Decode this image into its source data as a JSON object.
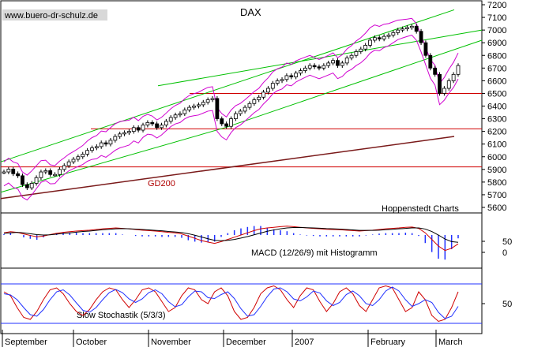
{
  "chart_data": [
    {
      "type": "candlestick",
      "title": "DAX",
      "watermark": "www.buero-dr-schulz.de",
      "credit": "Hoppenstedt Charts",
      "ma_label": "GD200",
      "y_ticks": [
        5600,
        5700,
        5800,
        5900,
        6000,
        6100,
        6200,
        6300,
        6400,
        6500,
        6600,
        6700,
        6800,
        6900,
        7000,
        7100,
        7200
      ],
      "ylim": [
        5600,
        7200
      ],
      "months": [
        "September",
        "October",
        "November",
        "December",
        "2007",
        "February",
        "March"
      ],
      "close": [
        5880,
        5902,
        5866,
        5850,
        5780,
        5755,
        5790,
        5835,
        5880,
        5890,
        5860,
        5860,
        5900,
        5930,
        5960,
        5980,
        6000,
        6020,
        6050,
        6070,
        6080,
        6110,
        6100,
        6130,
        6160,
        6180,
        6190,
        6200,
        6230,
        6210,
        6250,
        6270,
        6260,
        6230,
        6250,
        6280,
        6310,
        6330,
        6340,
        6370,
        6390,
        6400,
        6410,
        6430,
        6450,
        6460,
        6300,
        6260,
        6240,
        6300,
        6340,
        6360,
        6390,
        6420,
        6450,
        6470,
        6510,
        6540,
        6580,
        6600,
        6610,
        6640,
        6630,
        6660,
        6680,
        6700,
        6720,
        6710,
        6700,
        6720,
        6740,
        6760,
        6720,
        6740,
        6780,
        6800,
        6830,
        6850,
        6880,
        6920,
        6940,
        6930,
        6950,
        6960,
        6980,
        7000,
        7010,
        7020,
        7030,
        6990,
        6900,
        6800,
        6700,
        6650,
        6500,
        6540,
        6600,
        6650,
        6720
      ],
      "gd200": [
        5670,
        6160
      ],
      "upper_channel": [
        [
          5960,
          7160
        ],
        [
          6950,
          7200
        ]
      ],
      "lower_channel": [
        5720,
        6230
      ],
      "lower_channel_2": [
        6230,
        7000
      ],
      "horizontal_levels": [
        6500,
        6220,
        5920
      ],
      "subpanels": [
        {
          "type": "line",
          "label": "MACD (12/26/9) mit Histogramm",
          "y_ticks": [
            50,
            0
          ],
          "macd": [
            10,
            15,
            12,
            5,
            -2,
            -8,
            -5,
            2,
            8,
            12,
            15,
            18,
            20,
            22,
            25,
            28,
            30,
            32,
            30,
            28,
            25,
            22,
            20,
            18,
            15,
            12,
            10,
            5,
            -5,
            -15,
            -25,
            -32,
            -38,
            -30,
            -20,
            -10,
            0,
            10,
            20,
            28,
            32,
            35,
            38,
            40,
            38,
            35,
            32,
            30,
            28,
            26,
            25,
            24,
            22,
            20,
            18,
            20,
            22,
            25,
            28,
            30,
            32,
            35,
            36,
            30,
            10,
            -20,
            -50,
            -70,
            -60,
            -40
          ],
          "signal": [
            8,
            10,
            12,
            10,
            6,
            2,
            0,
            1,
            4,
            7,
            10,
            13,
            16,
            18,
            21,
            24,
            26,
            28,
            29,
            28,
            27,
            25,
            23,
            21,
            19,
            16,
            14,
            11,
            6,
            -1,
            -9,
            -17,
            -24,
            -26,
            -24,
            -20,
            -14,
            -7,
            1,
            9,
            17,
            23,
            28,
            32,
            34,
            34,
            33,
            32,
            31,
            29,
            28,
            27,
            25,
            23,
            21,
            21,
            21,
            22,
            24,
            26,
            28,
            30,
            32,
            32,
            27,
            16,
            0,
            -18,
            -30,
            -33
          ]
        },
        {
          "type": "line",
          "label": "Slow Stochastik (5/3/3)",
          "y_ticks": [
            50
          ],
          "k": [
            80,
            70,
            40,
            15,
            10,
            30,
            60,
            85,
            90,
            75,
            50,
            30,
            20,
            35,
            60,
            80,
            90,
            85,
            60,
            40,
            60,
            85,
            90,
            80,
            55,
            30,
            40,
            70,
            90,
            85,
            60,
            50,
            80,
            90,
            70,
            30,
            10,
            15,
            40,
            75,
            90,
            95,
            85,
            60,
            40,
            70,
            90,
            85,
            55,
            30,
            50,
            80,
            90,
            75,
            45,
            30,
            60,
            90,
            95,
            90,
            60,
            30,
            40,
            80,
            60,
            20,
            5,
            10,
            40,
            80
          ],
          "d": [
            75,
            72,
            60,
            40,
            22,
            18,
            35,
            60,
            80,
            85,
            72,
            52,
            33,
            28,
            40,
            60,
            78,
            86,
            78,
            62,
            53,
            62,
            78,
            85,
            75,
            55,
            42,
            47,
            67,
            82,
            80,
            65,
            63,
            73,
            80,
            63,
            37,
            18,
            22,
            43,
            68,
            87,
            90,
            80,
            62,
            57,
            67,
            82,
            77,
            57,
            45,
            53,
            73,
            82,
            70,
            50,
            45,
            60,
            82,
            92,
            82,
            60,
            43,
            50,
            60,
            53,
            28,
            12,
            18,
            43
          ]
        }
      ]
    }
  ]
}
